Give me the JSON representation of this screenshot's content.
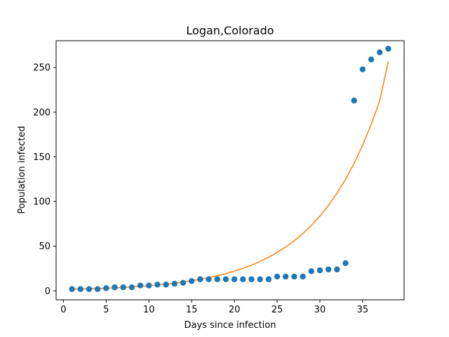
{
  "chart_data": {
    "type": "scatter",
    "title": "Logan,Colorado",
    "xlabel": "Days since infection",
    "ylabel": "Population infected",
    "xlim": [
      -0.85,
      39.85
    ],
    "ylim": [
      -10,
      280
    ],
    "xticks": [
      0,
      5,
      10,
      15,
      20,
      25,
      30,
      35
    ],
    "yticks": [
      0,
      50,
      100,
      150,
      200,
      250
    ],
    "grid": false,
    "series": [
      {
        "kind": "scatter",
        "color": "#1f77b4",
        "x": [
          1,
          2,
          3,
          4,
          5,
          6,
          7,
          8,
          9,
          10,
          11,
          12,
          13,
          14,
          15,
          16,
          17,
          18,
          19,
          20,
          21,
          22,
          23,
          24,
          25,
          26,
          27,
          28,
          29,
          30,
          31,
          32,
          33,
          34,
          35,
          36,
          37,
          38
        ],
        "y": [
          2,
          2,
          2,
          2,
          3,
          4,
          4,
          4,
          6,
          6,
          7,
          7,
          8,
          9,
          11,
          13,
          13,
          13,
          13,
          13,
          13,
          13,
          13,
          13,
          16,
          16,
          16,
          16,
          22,
          23,
          24,
          24,
          31,
          213,
          248,
          259,
          267,
          271
        ]
      },
      {
        "kind": "line",
        "color": "#ff7f0e",
        "x": [
          1,
          2,
          3,
          4,
          5,
          6,
          7,
          8,
          9,
          10,
          11,
          12,
          13,
          14,
          15,
          16,
          17,
          18,
          19,
          20,
          21,
          22,
          23,
          24,
          25,
          26,
          27,
          28,
          29,
          30,
          31,
          32,
          33,
          34,
          35,
          36,
          37,
          38
        ],
        "y": [
          1.8,
          2.0,
          2.3,
          2.6,
          3.0,
          3.4,
          3.9,
          4.4,
          5.0,
          5.8,
          6.6,
          7.6,
          8.7,
          9.9,
          11.3,
          12.9,
          14.8,
          16.9,
          19.3,
          22.1,
          25.2,
          28.8,
          32.9,
          37.6,
          43.0,
          49.1,
          56.1,
          64.1,
          73.3,
          83.7,
          95.6,
          109.3,
          124.9,
          142.7,
          163.0,
          186.3,
          212.9,
          257.0
        ]
      }
    ]
  }
}
